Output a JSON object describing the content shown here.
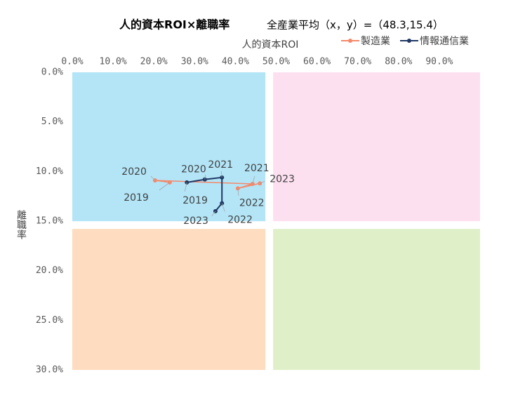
{
  "chart_data": {
    "type": "line",
    "title": "人的資本ROI×離職率",
    "subtitle": "全産業平均（x，y）=（48.3,15.4）",
    "x_label": "人的資本ROI",
    "y_label": "離職率",
    "categories": [
      "2019",
      "2020",
      "2021",
      "2022",
      "2023"
    ],
    "quadrant_split": {
      "x": 48.3,
      "y": 15.4
    },
    "quadrant_colors": [
      "#b3e5f7",
      "#fde0f0",
      "#fddcbf",
      "#dff0c9"
    ],
    "xlim": [
      0,
      100
    ],
    "ylim": [
      0,
      30
    ],
    "y_inverted": true,
    "x_axis_top": true,
    "xticks": [
      {
        "value": 0,
        "label": "0.0%"
      },
      {
        "value": 10,
        "label": "10.0%"
      },
      {
        "value": 20,
        "label": "20.0%"
      },
      {
        "value": 30,
        "label": "30.0%"
      },
      {
        "value": 40,
        "label": "40.0%"
      },
      {
        "value": 50,
        "label": "50.0%"
      },
      {
        "value": 60,
        "label": "60.0%"
      },
      {
        "value": 70,
        "label": "70.0%"
      },
      {
        "value": 80,
        "label": "80.0%"
      },
      {
        "value": 90,
        "label": "90.0%"
      }
    ],
    "yticks": [
      {
        "value": 0,
        "label": "0.0%"
      },
      {
        "value": 5,
        "label": "5.0%"
      },
      {
        "value": 10,
        "label": "10.0%"
      },
      {
        "value": 15,
        "label": "15.0%"
      },
      {
        "value": 20,
        "label": "20.0%"
      },
      {
        "value": 25,
        "label": "25.0%"
      },
      {
        "value": 30,
        "label": "30.0%"
      }
    ],
    "legend": "top-right",
    "series": [
      {
        "name": "製造業",
        "color": "#f4896b",
        "x": [
          23.9,
          20.3,
          44.2,
          40.6,
          46.0
        ],
        "values": [
          11.1,
          10.9,
          11.25,
          11.7,
          11.2
        ]
      },
      {
        "name": "情報通信業",
        "color": "#203864",
        "x": [
          28.1,
          32.5,
          36.7,
          36.7,
          35.1
        ],
        "values": [
          11.1,
          10.8,
          10.6,
          13.2,
          14.0
        ]
      }
    ]
  }
}
